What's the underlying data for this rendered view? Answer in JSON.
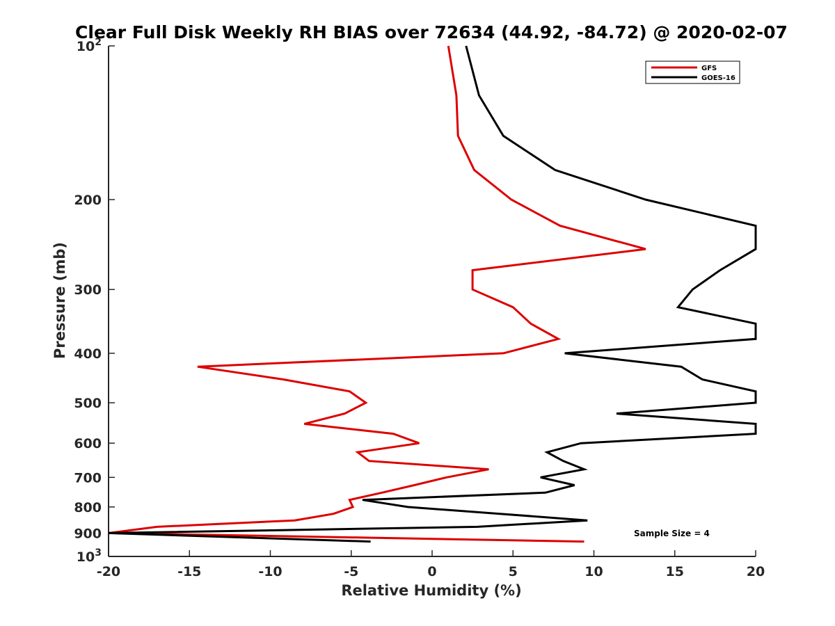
{
  "chart_data": {
    "type": "line",
    "title": "Clear Full Disk Weekly RH BIAS over 72634 (44.92, -84.72) @ 2020-02-07",
    "xlabel": "Relative Humidity (%)",
    "ylabel": "Pressure (mb)",
    "xlim": [
      -20,
      20
    ],
    "ylim": [
      100,
      1000
    ],
    "yscale": "log",
    "y_reversed": true,
    "xticks": [
      -20,
      -15,
      -10,
      -5,
      0,
      5,
      10,
      15,
      20
    ],
    "xtick_labels": [
      "-20",
      "-15",
      "-10",
      "-5",
      "0",
      "5",
      "10",
      "15",
      "20"
    ],
    "yticks": [
      100,
      200,
      300,
      400,
      500,
      600,
      700,
      800,
      900,
      1000
    ],
    "ytick_labels": [
      {
        "base": "10",
        "exp": "2"
      },
      {
        "base": "200",
        "exp": ""
      },
      {
        "base": "300",
        "exp": ""
      },
      {
        "base": "400",
        "exp": ""
      },
      {
        "base": "500",
        "exp": ""
      },
      {
        "base": "600",
        "exp": ""
      },
      {
        "base": "700",
        "exp": ""
      },
      {
        "base": "800",
        "exp": ""
      },
      {
        "base": "900",
        "exp": ""
      },
      {
        "base": "10",
        "exp": "3"
      }
    ],
    "legend_position": "top-right",
    "annotation": "Sample Size = 4",
    "series": [
      {
        "name": "GFS",
        "color": "#dd0000",
        "points": [
          [
            1.0,
            100
          ],
          [
            1.5,
            125
          ],
          [
            1.6,
            150
          ],
          [
            2.6,
            175
          ],
          [
            4.9,
            200
          ],
          [
            7.9,
            225
          ],
          [
            13.2,
            250
          ],
          [
            2.5,
            275
          ],
          [
            2.5,
            300
          ],
          [
            5.0,
            325
          ],
          [
            6.1,
            350
          ],
          [
            7.8,
            375
          ],
          [
            4.4,
            400
          ],
          [
            -14.5,
            425
          ],
          [
            -9.2,
            450
          ],
          [
            -5.1,
            475
          ],
          [
            -4.1,
            500
          ],
          [
            -5.4,
            525
          ],
          [
            -7.9,
            550
          ],
          [
            -2.4,
            575
          ],
          [
            -0.8,
            600
          ],
          [
            -4.6,
            625
          ],
          [
            -3.9,
            650
          ],
          [
            3.5,
            675
          ],
          [
            0.9,
            700
          ],
          [
            -1.1,
            725
          ],
          [
            -3.1,
            750
          ],
          [
            -5.1,
            775
          ],
          [
            -4.9,
            800
          ],
          [
            -6.1,
            825
          ],
          [
            -8.5,
            850
          ],
          [
            -17.0,
            875
          ],
          [
            -20.0,
            900
          ],
          [
            9.4,
            935
          ]
        ]
      },
      {
        "name": "GOES-16",
        "color": "#000000",
        "points": [
          [
            2.1,
            100
          ],
          [
            2.9,
            125
          ],
          [
            4.4,
            150
          ],
          [
            7.6,
            175
          ],
          [
            13.2,
            200
          ],
          [
            20.0,
            225
          ],
          [
            20.0,
            250
          ],
          [
            17.8,
            275
          ],
          [
            16.1,
            300
          ],
          [
            15.2,
            325
          ],
          [
            20.0,
            350
          ],
          [
            20.0,
            375
          ],
          [
            8.2,
            400
          ],
          [
            15.4,
            425
          ],
          [
            16.7,
            450
          ],
          [
            20.0,
            475
          ],
          [
            20.0,
            500
          ],
          [
            11.4,
            525
          ],
          [
            20.0,
            550
          ],
          [
            20.0,
            575
          ],
          [
            9.2,
            600
          ],
          [
            7.1,
            625
          ],
          [
            8.1,
            650
          ],
          [
            9.4,
            675
          ],
          [
            6.7,
            700
          ],
          [
            8.8,
            725
          ],
          [
            7.0,
            750
          ],
          [
            -4.3,
            775
          ],
          [
            -1.5,
            800
          ],
          [
            4.2,
            825
          ],
          [
            9.6,
            850
          ],
          [
            2.8,
            875
          ],
          [
            -20.0,
            900
          ],
          [
            -3.8,
            935
          ]
        ]
      }
    ]
  }
}
